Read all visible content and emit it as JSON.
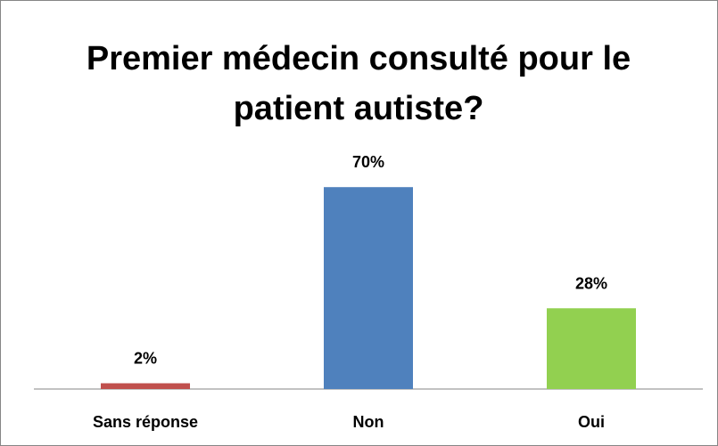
{
  "chart_data": {
    "type": "bar",
    "title": "Premier médecin consulté pour le patient autiste?",
    "categories": [
      "Sans réponse",
      "Non",
      "Oui"
    ],
    "values": [
      2,
      70,
      28
    ],
    "value_labels": [
      "2%",
      "70%",
      "28%"
    ],
    "colors": [
      "#c0504d",
      "#4f81bd",
      "#92d050"
    ]
  }
}
